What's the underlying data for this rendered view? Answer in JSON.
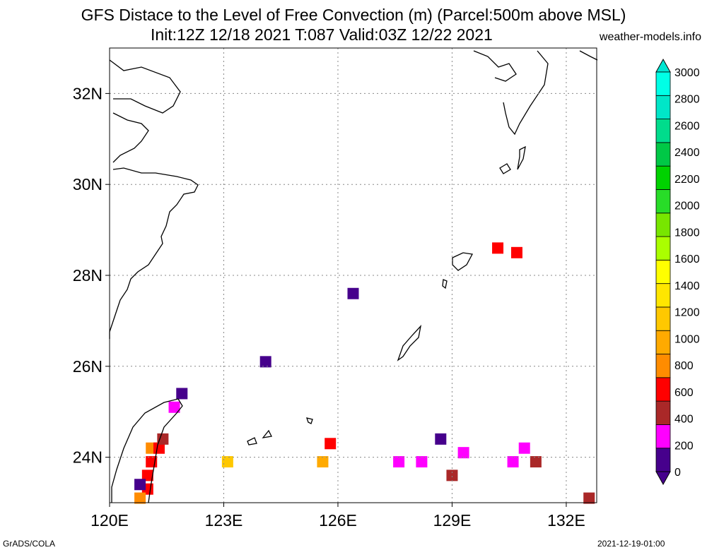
{
  "title": {
    "line1": "GFS Distace to the Level of Free Convection (m) (Parcel:500m above MSL)",
    "line2": "Init:12Z 12/18 2021 T:087 Valid:03Z 12/22 2021",
    "site": "weather-models.info"
  },
  "footer": {
    "left": "GrADS/COLA",
    "right": "2021-12-19-01:00"
  },
  "map": {
    "lon_range": [
      120,
      132.8
    ],
    "lat_range": [
      23,
      33
    ],
    "lon_ticks": [
      {
        "value": 120,
        "label": "120E"
      },
      {
        "value": 123,
        "label": "123E"
      },
      {
        "value": 126,
        "label": "126E"
      },
      {
        "value": 129,
        "label": "129E"
      },
      {
        "value": 132,
        "label": "132E"
      }
    ],
    "lat_ticks": [
      {
        "value": 24,
        "label": "24N"
      },
      {
        "value": 26,
        "label": "26N"
      },
      {
        "value": 28,
        "label": "28N"
      },
      {
        "value": 30,
        "label": "30N"
      },
      {
        "value": 32,
        "label": "32N"
      }
    ],
    "grid": true,
    "grid_style": "dotted",
    "coastline_color": "#000000"
  },
  "colorbar": {
    "labels": [
      "0",
      "200",
      "400",
      "600",
      "800",
      "1000",
      "1200",
      "1400",
      "1600",
      "1800",
      "2000",
      "2200",
      "2400",
      "2600",
      "2800",
      "3000"
    ],
    "colors": [
      "#46008c",
      "#ff00ff",
      "#aa2828",
      "#ff0000",
      "#ff8c00",
      "#ffaa00",
      "#ffc800",
      "#ffe600",
      "#ffff00",
      "#aaff00",
      "#78e600",
      "#28dc28",
      "#00d200",
      "#00c846",
      "#00dc8c",
      "#00e6c8",
      "#00ffe6"
    ],
    "under_color": "#46008c",
    "over_color": "#00e6d2"
  },
  "cells": [
    {
      "lon": 121.0,
      "lat": 23.3,
      "color": "#ff0000"
    },
    {
      "lon": 121.0,
      "lat": 23.6,
      "color": "#ff0000"
    },
    {
      "lon": 121.1,
      "lat": 23.9,
      "color": "#ff0000"
    },
    {
      "lon": 121.1,
      "lat": 24.2,
      "color": "#ff8c00"
    },
    {
      "lon": 121.3,
      "lat": 24.2,
      "color": "#ff0000"
    },
    {
      "lon": 121.4,
      "lat": 24.4,
      "color": "#aa2828"
    },
    {
      "lon": 120.8,
      "lat": 23.1,
      "color": "#ff8c00"
    },
    {
      "lon": 120.8,
      "lat": 23.4,
      "color": "#46008c"
    },
    {
      "lon": 121.7,
      "lat": 25.1,
      "color": "#ff00ff"
    },
    {
      "lon": 121.9,
      "lat": 25.4,
      "color": "#46008c"
    },
    {
      "lon": 123.1,
      "lat": 23.9,
      "color": "#ffc800"
    },
    {
      "lon": 124.1,
      "lat": 26.1,
      "color": "#46008c"
    },
    {
      "lon": 125.6,
      "lat": 23.9,
      "color": "#ffaa00"
    },
    {
      "lon": 125.8,
      "lat": 24.3,
      "color": "#ff0000"
    },
    {
      "lon": 126.4,
      "lat": 27.6,
      "color": "#46008c"
    },
    {
      "lon": 127.6,
      "lat": 23.9,
      "color": "#ff00ff"
    },
    {
      "lon": 128.2,
      "lat": 23.9,
      "color": "#ff00ff"
    },
    {
      "lon": 128.7,
      "lat": 24.4,
      "color": "#46008c"
    },
    {
      "lon": 129.0,
      "lat": 23.6,
      "color": "#aa2828"
    },
    {
      "lon": 129.3,
      "lat": 24.1,
      "color": "#ff00ff"
    },
    {
      "lon": 130.2,
      "lat": 28.6,
      "color": "#ff0000"
    },
    {
      "lon": 130.7,
      "lat": 28.5,
      "color": "#ff0000"
    },
    {
      "lon": 130.9,
      "lat": 24.2,
      "color": "#ff00ff"
    },
    {
      "lon": 130.6,
      "lat": 23.9,
      "color": "#ff00ff"
    },
    {
      "lon": 131.2,
      "lat": 23.9,
      "color": "#aa2828"
    },
    {
      "lon": 132.6,
      "lat": 23.1,
      "color": "#aa2828"
    }
  ]
}
